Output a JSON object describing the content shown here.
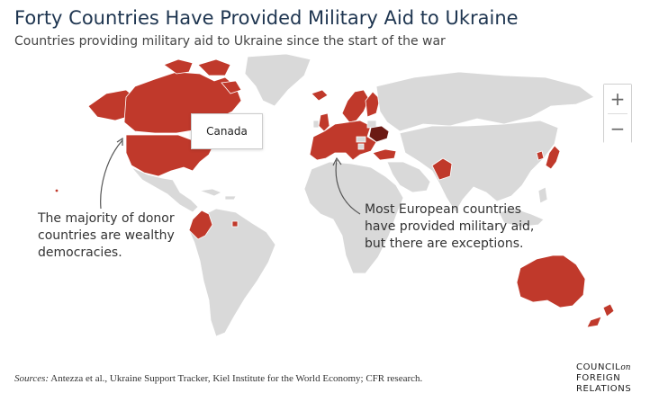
{
  "header": {
    "title": "Forty Countries Have Provided Military Aid to Ukraine",
    "subtitle": "Countries providing military aid to Ukraine since the start of the war"
  },
  "map": {
    "colors": {
      "ocean": "#ffffff",
      "land": "#d9d9d9",
      "donor": "#c0392b",
      "ukraine": "#6b1a14",
      "border": "#ffffff"
    },
    "tooltip": {
      "label": "Canada"
    },
    "zoom": {
      "in_label": "+",
      "out_label": "−"
    },
    "annotations": {
      "left": "The majority of donor countries are wealthy democracies.",
      "right": "Most European countries have provided military aid, but there are exceptions."
    }
  },
  "footer": {
    "sources_label": "Sources:",
    "sources_text": "Antezza et al., Ukraine Support Tracker, Kiel Institute for the World Economy; CFR research.",
    "logo_line1": "COUNCIL",
    "logo_on": "on",
    "logo_line2": "FOREIGN",
    "logo_line3": "RELATIONS"
  }
}
